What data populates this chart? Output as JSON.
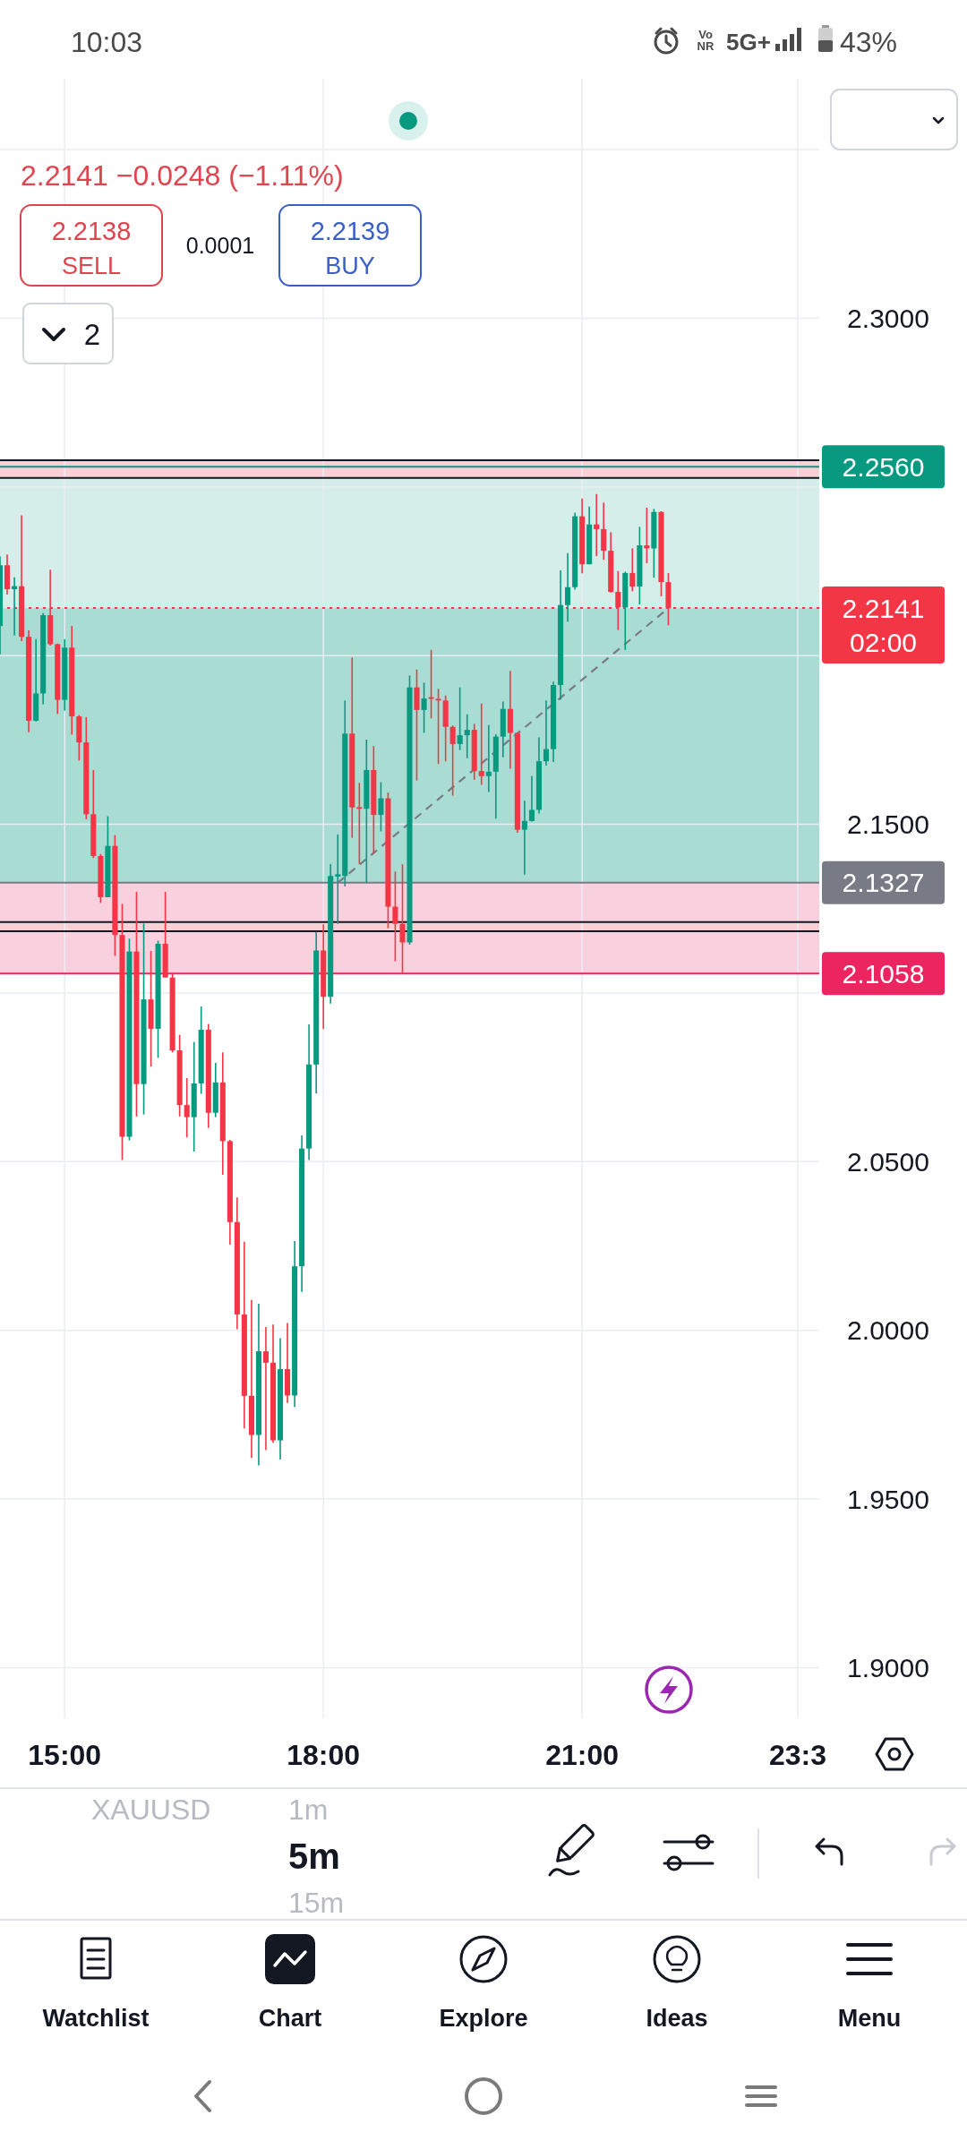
{
  "chart_data": {
    "type": "candlestick",
    "x": [
      14.25,
      14.333,
      14.417,
      14.5,
      14.583,
      14.667,
      14.75,
      14.833,
      14.917,
      15,
      15.083,
      15.167,
      15.25,
      15.333,
      15.417,
      15.5,
      15.583,
      15.667,
      15.75,
      15.833,
      15.917,
      16,
      16.083,
      16.167,
      16.25,
      16.333,
      16.417,
      16.5,
      16.583,
      16.667,
      16.75,
      16.833,
      16.917,
      17,
      17.083,
      17.167,
      17.25,
      17.333,
      17.417,
      17.5,
      17.583,
      17.667,
      17.75,
      17.833,
      17.917,
      18,
      18.083,
      18.167,
      18.25,
      18.333,
      18.417,
      18.5,
      18.583,
      18.667,
      18.75,
      18.833,
      18.917,
      19,
      19.083,
      19.167,
      19.25,
      19.333,
      19.417,
      19.5,
      19.583,
      19.667,
      19.75,
      19.833,
      19.917,
      20,
      20.083,
      20.167,
      20.25,
      20.333,
      20.417,
      20.5,
      20.583,
      20.667,
      20.75,
      20.833,
      20.917,
      21,
      21.083,
      21.167,
      21.25,
      21.333,
      21.417,
      21.5,
      21.583,
      21.667,
      21.75,
      21.833,
      21.917,
      22
    ],
    "ohlc": [
      [
        2.2088,
        2.2294,
        2.2004,
        2.2268
      ],
      [
        2.2268,
        2.23,
        2.2181,
        2.2197
      ],
      [
        2.2197,
        2.2232,
        2.206,
        2.2206
      ],
      [
        2.2206,
        2.2416,
        2.2043,
        2.2056
      ],
      [
        2.2056,
        2.2075,
        2.1773,
        2.1807
      ],
      [
        2.1807,
        2.2049,
        2.1805,
        2.1888
      ],
      [
        2.1888,
        2.2126,
        2.1856,
        2.212
      ],
      [
        2.212,
        2.2255,
        2.203,
        2.2034
      ],
      [
        2.2034,
        2.2036,
        2.1827,
        2.1869
      ],
      [
        2.1869,
        2.2049,
        2.1837,
        2.2024
      ],
      [
        2.2024,
        2.2088,
        2.1766,
        2.182
      ],
      [
        2.182,
        2.1824,
        2.1689,
        2.1743
      ],
      [
        2.1743,
        2.1818,
        2.1515,
        2.153
      ],
      [
        2.153,
        2.1661,
        2.14,
        2.1406
      ],
      [
        2.1406,
        2.1412,
        2.1267,
        2.1284
      ],
      [
        2.1284,
        2.1524,
        2.1284,
        2.1436
      ],
      [
        2.1436,
        2.1468,
        2.111,
        2.1172
      ],
      [
        2.1172,
        2.1264,
        2.0505,
        2.0574
      ],
      [
        2.0574,
        2.1161,
        2.0563,
        2.1123
      ],
      [
        2.1123,
        2.13,
        2.0634,
        2.073
      ],
      [
        2.073,
        2.1206,
        2.064,
        2.0981
      ],
      [
        2.0981,
        2.1125,
        2.0782,
        2.0894
      ],
      [
        2.0894,
        2.1155,
        2.0808,
        2.1146
      ],
      [
        2.1146,
        2.13,
        2.1046,
        2.1046
      ],
      [
        2.1046,
        2.1059,
        2.0824,
        2.083
      ],
      [
        2.083,
        2.0876,
        2.0634,
        2.0668
      ],
      [
        2.0668,
        2.0748,
        2.0572,
        2.0632
      ],
      [
        2.0632,
        2.0855,
        2.053,
        2.0732
      ],
      [
        2.0732,
        2.096,
        2.0701,
        2.0891
      ],
      [
        2.0891,
        2.0908,
        2.06,
        2.0645
      ],
      [
        2.0645,
        2.0793,
        2.0632,
        2.0735
      ],
      [
        2.0735,
        2.0824,
        2.0461,
        2.0561
      ],
      [
        2.0561,
        2.0565,
        2.0254,
        2.0321
      ],
      [
        2.0321,
        2.0394,
        2.0003,
        2.0047
      ],
      [
        2.0047,
        2.0263,
        1.9709,
        1.9806
      ],
      [
        1.9806,
        2.009,
        1.9622,
        1.969
      ],
      [
        1.969,
        2.0079,
        1.96,
        1.9938
      ],
      [
        1.9938,
        2.001,
        1.9645,
        1.9904
      ],
      [
        1.9904,
        2.0017,
        1.9667,
        1.9674
      ],
      [
        1.9674,
        1.9977,
        1.9617,
        1.9885
      ],
      [
        1.9885,
        2.0022,
        1.9785,
        1.9807
      ],
      [
        1.9807,
        2.0265,
        1.9773,
        2.019
      ],
      [
        2.019,
        2.0578,
        2.0114,
        2.0539
      ],
      [
        2.0539,
        2.0907,
        2.0505,
        2.0788
      ],
      [
        2.0788,
        2.1181,
        2.0703,
        2.1126
      ],
      [
        2.1126,
        2.1204,
        2.0893,
        2.0989
      ],
      [
        2.0989,
        2.1382,
        2.0969,
        2.1347
      ],
      [
        2.1345,
        2.147,
        2.1205,
        2.1352
      ],
      [
        2.1347,
        2.1867,
        2.1316,
        2.1769
      ],
      [
        2.1769,
        2.1994,
        2.146,
        2.155
      ],
      [
        2.1551,
        2.1623,
        2.1382,
        2.1546
      ],
      [
        2.1546,
        2.1751,
        2.1327,
        2.1661
      ],
      [
        2.1661,
        2.1732,
        2.1413,
        2.1528
      ],
      [
        2.1528,
        2.1625,
        2.1479,
        2.1577
      ],
      [
        2.1577,
        2.1594,
        2.1192,
        2.1256
      ],
      [
        2.1256,
        2.136,
        2.1094,
        2.1205
      ],
      [
        2.1205,
        2.1382,
        2.1059,
        2.115
      ],
      [
        2.115,
        2.1941,
        2.1143,
        2.1906
      ],
      [
        2.1906,
        2.1959,
        2.163,
        2.1839
      ],
      [
        2.1839,
        2.192,
        2.1771,
        2.1873
      ],
      [
        2.1877,
        2.2017,
        2.1814,
        2.1872
      ],
      [
        2.1872,
        2.1902,
        2.1679,
        2.1867
      ],
      [
        2.1867,
        2.1882,
        2.1687,
        2.1789
      ],
      [
        2.1789,
        2.1793,
        2.1585,
        2.1738
      ],
      [
        2.1738,
        2.1906,
        2.172,
        2.1764
      ],
      [
        2.1764,
        2.1826,
        2.1696,
        2.178
      ],
      [
        2.178,
        2.1798,
        2.1632,
        2.1658
      ],
      [
        2.1658,
        2.1858,
        2.1617,
        2.1643
      ],
      [
        2.1643,
        2.1794,
        2.1596,
        2.1656
      ],
      [
        2.1656,
        2.1767,
        2.1517,
        2.176
      ],
      [
        2.176,
        2.1864,
        2.1699,
        2.1842
      ],
      [
        2.1842,
        2.1955,
        2.1665,
        2.1771
      ],
      [
        2.1771,
        2.1772,
        2.1475,
        2.1484
      ],
      [
        2.1484,
        2.157,
        2.1351,
        2.151
      ],
      [
        2.151,
        2.1643,
        2.1508,
        2.1543
      ],
      [
        2.1543,
        2.1758,
        2.1532,
        2.1687
      ],
      [
        2.1687,
        2.1867,
        2.1674,
        2.1723
      ],
      [
        2.1723,
        2.1923,
        2.1685,
        2.1913
      ],
      [
        2.1913,
        2.2253,
        2.1869,
        2.215
      ],
      [
        2.215,
        2.2304,
        2.2101,
        2.2203
      ],
      [
        2.2203,
        2.2424,
        2.2196,
        2.2413
      ],
      [
        2.2413,
        2.2466,
        2.2244,
        2.2271
      ],
      [
        2.2271,
        2.2442,
        2.2271,
        2.2389
      ],
      [
        2.2389,
        2.2479,
        2.2295,
        2.2375
      ],
      [
        2.2375,
        2.2454,
        2.2284,
        2.2311
      ],
      [
        2.2311,
        2.2366,
        2.2187,
        2.2189
      ],
      [
        2.2189,
        2.2251,
        2.2076,
        2.2143
      ],
      [
        2.2143,
        2.2249,
        2.2017,
        2.2245
      ],
      [
        2.2245,
        2.2318,
        2.2191,
        2.2205
      ],
      [
        2.2205,
        2.2382,
        2.2152,
        2.2327
      ],
      [
        2.2327,
        2.2439,
        2.2274,
        2.2318
      ],
      [
        2.2318,
        2.2435,
        2.2231,
        2.2426
      ],
      [
        2.2426,
        2.2428,
        2.2176,
        2.2218
      ],
      [
        2.2218,
        2.2245,
        2.209,
        2.2141
      ]
    ],
    "colors": [
      "#089981",
      "#f23645",
      "#089981",
      "#f23645",
      "#f23645",
      "#089981",
      "#089981",
      "#f23645",
      "#f23645",
      "#089981",
      "#f23645",
      "#f23645",
      "#f23645",
      "#f23645",
      "#f23645",
      "#089981",
      "#f23645",
      "#f23645",
      "#089981",
      "#f23645",
      "#089981",
      "#f23645",
      "#089981",
      "#f23645",
      "#f23645",
      "#f23645",
      "#f23645",
      "#089981",
      "#089981",
      "#f23645",
      "#089981",
      "#f23645",
      "#f23645",
      "#f23645",
      "#f23645",
      "#f23645",
      "#089981",
      "#f23645",
      "#f23645",
      "#089981",
      "#f23645",
      "#089981",
      "#089981",
      "#089981",
      "#089981",
      "#f23645",
      "#089981",
      "#089981",
      "#089981",
      "#f23645",
      "#f23645",
      "#089981",
      "#f23645",
      "#089981",
      "#f23645",
      "#f23645",
      "#f23645",
      "#089981",
      "#f23645",
      "#089981",
      "#f23645",
      "#f23645",
      "#f23645",
      "#f23645",
      "#089981",
      "#089981",
      "#f23645",
      "#f23645",
      "#089981",
      "#089981",
      "#089981",
      "#f23645",
      "#f23645",
      "#089981",
      "#089981",
      "#089981",
      "#089981",
      "#089981",
      "#089981",
      "#089981",
      "#089981",
      "#f23645",
      "#089981",
      "#f23645",
      "#f23645",
      "#f23645",
      "#f23645",
      "#089981",
      "#f23645",
      "#089981",
      "#f23645",
      "#089981",
      "#f23645",
      "#f23645"
    ],
    "series": [
      {
        "type": "line",
        "x": [
          18.167,
          22
        ],
        "values": [
          2.1327,
          2.2141
        ],
        "color": "#787b86",
        "line_style": "dashed"
      }
    ],
    "xlim": [
      14.25,
      23.75
    ],
    "xticks": [
      {
        "value": 15,
        "label": "15:00"
      },
      {
        "value": 18,
        "label": "18:00"
      },
      {
        "value": 21,
        "label": "21:00"
      },
      {
        "value": 23.5,
        "label": "23:3"
      }
    ],
    "ylim": [
      1.885,
      2.371
    ],
    "yticks": [
      {
        "value": 1.9,
        "label": "1.9000"
      },
      {
        "value": 1.95,
        "label": "1.9500"
      },
      {
        "value": 2,
        "label": "2.0000"
      },
      {
        "value": 2.05,
        "label": "2.0500"
      },
      {
        "value": 2.1,
        "label": null
      },
      {
        "value": 2.15,
        "label": "2.1500"
      },
      {
        "value": 2.2,
        "label": null
      },
      {
        "value": 2.25,
        "label": null
      },
      {
        "value": 2.3,
        "label": "2.3000"
      },
      {
        "value": 2.35,
        "label": null
      }
    ],
    "grid": true,
    "bands": [
      {
        "axis": "y",
        "from": 2.1327,
        "to": 2.2141,
        "color": "#a9dcd3"
      },
      {
        "axis": "y",
        "from": 2.2141,
        "to": 2.256,
        "color": "#d5eee9"
      },
      {
        "axis": "y",
        "from": 2.1058,
        "to": 2.1327,
        "color": "#f9d1de"
      },
      {
        "axis": "y",
        "from": 2.2527,
        "to": 2.2579,
        "color": "#f9d0d5"
      },
      {
        "axis": "y",
        "from": 2.1183,
        "to": 2.121,
        "color": "#f9d0d5"
      }
    ],
    "ref_lines": [
      {
        "axis": "y",
        "value": 2.2579,
        "color": "#131722"
      },
      {
        "axis": "y",
        "value": 2.2527,
        "color": "#131722"
      },
      {
        "axis": "y",
        "value": 2.121,
        "color": "#131722"
      },
      {
        "axis": "y",
        "value": 2.1183,
        "color": "#131722"
      },
      {
        "axis": "y",
        "value": 2.256,
        "label": "2.2560",
        "color": "#089981"
      },
      {
        "axis": "y",
        "value": 2.2141,
        "label": "2.2141\n02:00",
        "color": "#f23645",
        "line_style": "dotted"
      },
      {
        "axis": "y",
        "value": 2.1327,
        "label": "2.1327",
        "color": "#787b86"
      },
      {
        "axis": "y",
        "value": 2.1058,
        "label": "2.1058",
        "color": "#ec2460"
      }
    ],
    "annotations": [
      "10:03",
      "Vo\nNR",
      "5G+",
      "43%",
      "2.2141  −0.0248 (−1.11%)",
      "2.2138",
      "SELL",
      "0.0001",
      "2.2139",
      "BUY",
      "2",
      "XAUUSD",
      "1m",
      "5m",
      "15m",
      "Watchlist",
      "Chart",
      "Explore",
      "Ideas",
      "Menu"
    ]
  }
}
